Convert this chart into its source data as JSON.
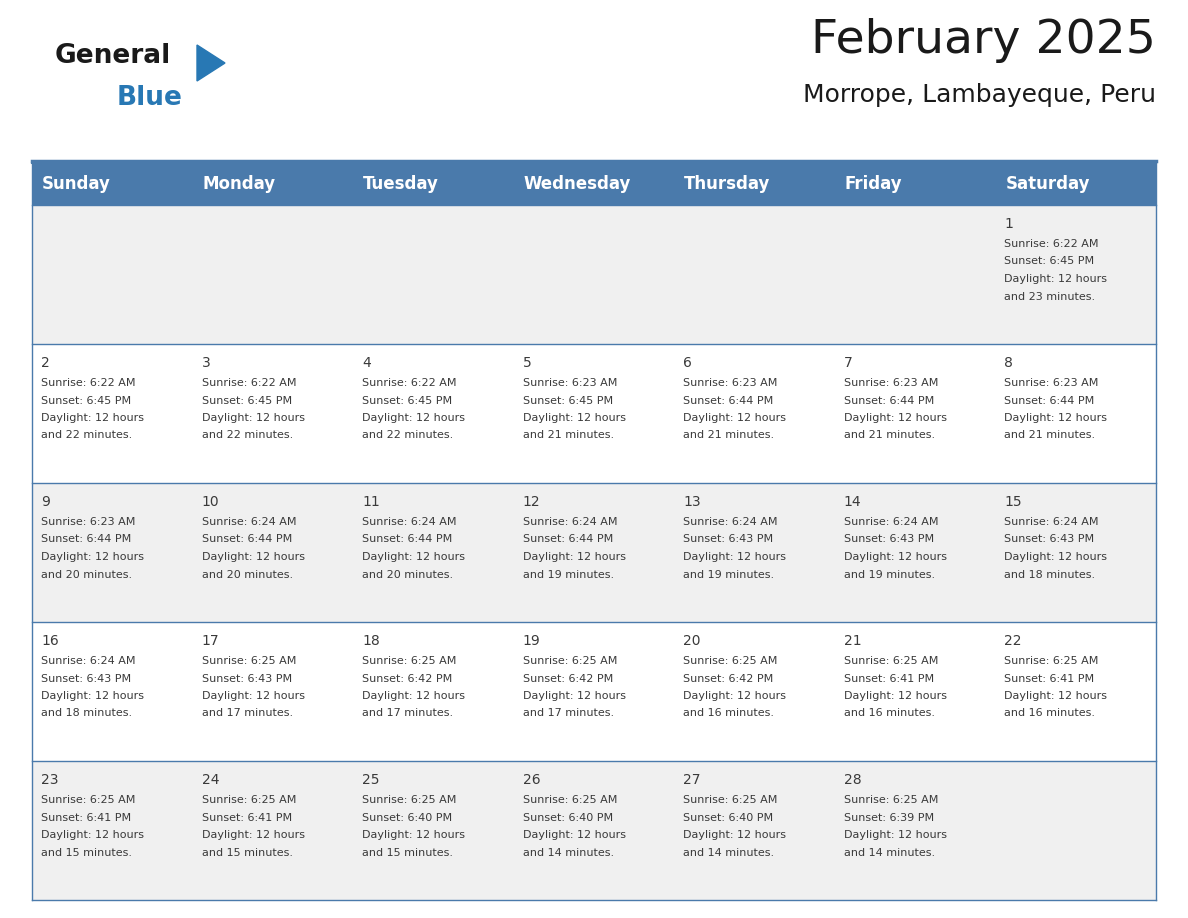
{
  "title": "February 2025",
  "subtitle": "Morrope, Lambayeque, Peru",
  "header_bg": "#4a7aab",
  "header_text": "#ffffff",
  "row0_bg": "#ebebeb",
  "row_bg_white": "#ffffff",
  "row_bg_gray": "#f0f0f0",
  "day_headers": [
    "Sunday",
    "Monday",
    "Tuesday",
    "Wednesday",
    "Thursday",
    "Friday",
    "Saturday"
  ],
  "days": [
    {
      "day": 1,
      "col": 6,
      "row": 0,
      "sunrise": "6:22 AM",
      "sunset": "6:45 PM",
      "daylight_line1": "Daylight: 12 hours",
      "daylight_line2": "and 23 minutes."
    },
    {
      "day": 2,
      "col": 0,
      "row": 1,
      "sunrise": "6:22 AM",
      "sunset": "6:45 PM",
      "daylight_line1": "Daylight: 12 hours",
      "daylight_line2": "and 22 minutes."
    },
    {
      "day": 3,
      "col": 1,
      "row": 1,
      "sunrise": "6:22 AM",
      "sunset": "6:45 PM",
      "daylight_line1": "Daylight: 12 hours",
      "daylight_line2": "and 22 minutes."
    },
    {
      "day": 4,
      "col": 2,
      "row": 1,
      "sunrise": "6:22 AM",
      "sunset": "6:45 PM",
      "daylight_line1": "Daylight: 12 hours",
      "daylight_line2": "and 22 minutes."
    },
    {
      "day": 5,
      "col": 3,
      "row": 1,
      "sunrise": "6:23 AM",
      "sunset": "6:45 PM",
      "daylight_line1": "Daylight: 12 hours",
      "daylight_line2": "and 21 minutes."
    },
    {
      "day": 6,
      "col": 4,
      "row": 1,
      "sunrise": "6:23 AM",
      "sunset": "6:44 PM",
      "daylight_line1": "Daylight: 12 hours",
      "daylight_line2": "and 21 minutes."
    },
    {
      "day": 7,
      "col": 5,
      "row": 1,
      "sunrise": "6:23 AM",
      "sunset": "6:44 PM",
      "daylight_line1": "Daylight: 12 hours",
      "daylight_line2": "and 21 minutes."
    },
    {
      "day": 8,
      "col": 6,
      "row": 1,
      "sunrise": "6:23 AM",
      "sunset": "6:44 PM",
      "daylight_line1": "Daylight: 12 hours",
      "daylight_line2": "and 21 minutes."
    },
    {
      "day": 9,
      "col": 0,
      "row": 2,
      "sunrise": "6:23 AM",
      "sunset": "6:44 PM",
      "daylight_line1": "Daylight: 12 hours",
      "daylight_line2": "and 20 minutes."
    },
    {
      "day": 10,
      "col": 1,
      "row": 2,
      "sunrise": "6:24 AM",
      "sunset": "6:44 PM",
      "daylight_line1": "Daylight: 12 hours",
      "daylight_line2": "and 20 minutes."
    },
    {
      "day": 11,
      "col": 2,
      "row": 2,
      "sunrise": "6:24 AM",
      "sunset": "6:44 PM",
      "daylight_line1": "Daylight: 12 hours",
      "daylight_line2": "and 20 minutes."
    },
    {
      "day": 12,
      "col": 3,
      "row": 2,
      "sunrise": "6:24 AM",
      "sunset": "6:44 PM",
      "daylight_line1": "Daylight: 12 hours",
      "daylight_line2": "and 19 minutes."
    },
    {
      "day": 13,
      "col": 4,
      "row": 2,
      "sunrise": "6:24 AM",
      "sunset": "6:43 PM",
      "daylight_line1": "Daylight: 12 hours",
      "daylight_line2": "and 19 minutes."
    },
    {
      "day": 14,
      "col": 5,
      "row": 2,
      "sunrise": "6:24 AM",
      "sunset": "6:43 PM",
      "daylight_line1": "Daylight: 12 hours",
      "daylight_line2": "and 19 minutes."
    },
    {
      "day": 15,
      "col": 6,
      "row": 2,
      "sunrise": "6:24 AM",
      "sunset": "6:43 PM",
      "daylight_line1": "Daylight: 12 hours",
      "daylight_line2": "and 18 minutes."
    },
    {
      "day": 16,
      "col": 0,
      "row": 3,
      "sunrise": "6:24 AM",
      "sunset": "6:43 PM",
      "daylight_line1": "Daylight: 12 hours",
      "daylight_line2": "and 18 minutes."
    },
    {
      "day": 17,
      "col": 1,
      "row": 3,
      "sunrise": "6:25 AM",
      "sunset": "6:43 PM",
      "daylight_line1": "Daylight: 12 hours",
      "daylight_line2": "and 17 minutes."
    },
    {
      "day": 18,
      "col": 2,
      "row": 3,
      "sunrise": "6:25 AM",
      "sunset": "6:42 PM",
      "daylight_line1": "Daylight: 12 hours",
      "daylight_line2": "and 17 minutes."
    },
    {
      "day": 19,
      "col": 3,
      "row": 3,
      "sunrise": "6:25 AM",
      "sunset": "6:42 PM",
      "daylight_line1": "Daylight: 12 hours",
      "daylight_line2": "and 17 minutes."
    },
    {
      "day": 20,
      "col": 4,
      "row": 3,
      "sunrise": "6:25 AM",
      "sunset": "6:42 PM",
      "daylight_line1": "Daylight: 12 hours",
      "daylight_line2": "and 16 minutes."
    },
    {
      "day": 21,
      "col": 5,
      "row": 3,
      "sunrise": "6:25 AM",
      "sunset": "6:41 PM",
      "daylight_line1": "Daylight: 12 hours",
      "daylight_line2": "and 16 minutes."
    },
    {
      "day": 22,
      "col": 6,
      "row": 3,
      "sunrise": "6:25 AM",
      "sunset": "6:41 PM",
      "daylight_line1": "Daylight: 12 hours",
      "daylight_line2": "and 16 minutes."
    },
    {
      "day": 23,
      "col": 0,
      "row": 4,
      "sunrise": "6:25 AM",
      "sunset": "6:41 PM",
      "daylight_line1": "Daylight: 12 hours",
      "daylight_line2": "and 15 minutes."
    },
    {
      "day": 24,
      "col": 1,
      "row": 4,
      "sunrise": "6:25 AM",
      "sunset": "6:41 PM",
      "daylight_line1": "Daylight: 12 hours",
      "daylight_line2": "and 15 minutes."
    },
    {
      "day": 25,
      "col": 2,
      "row": 4,
      "sunrise": "6:25 AM",
      "sunset": "6:40 PM",
      "daylight_line1": "Daylight: 12 hours",
      "daylight_line2": "and 15 minutes."
    },
    {
      "day": 26,
      "col": 3,
      "row": 4,
      "sunrise": "6:25 AM",
      "sunset": "6:40 PM",
      "daylight_line1": "Daylight: 12 hours",
      "daylight_line2": "and 14 minutes."
    },
    {
      "day": 27,
      "col": 4,
      "row": 4,
      "sunrise": "6:25 AM",
      "sunset": "6:40 PM",
      "daylight_line1": "Daylight: 12 hours",
      "daylight_line2": "and 14 minutes."
    },
    {
      "day": 28,
      "col": 5,
      "row": 4,
      "sunrise": "6:25 AM",
      "sunset": "6:39 PM",
      "daylight_line1": "Daylight: 12 hours",
      "daylight_line2": "and 14 minutes."
    }
  ],
  "num_rows": 5,
  "num_cols": 7,
  "title_fontsize": 34,
  "subtitle_fontsize": 18,
  "header_fontsize": 12,
  "day_num_fontsize": 10,
  "info_fontsize": 8,
  "text_color": "#3a3a3a",
  "border_color": "#4a7aab",
  "logo_general_color": "#1a1a1a",
  "logo_blue_color": "#2878b4",
  "logo_triangle_color": "#2878b4"
}
